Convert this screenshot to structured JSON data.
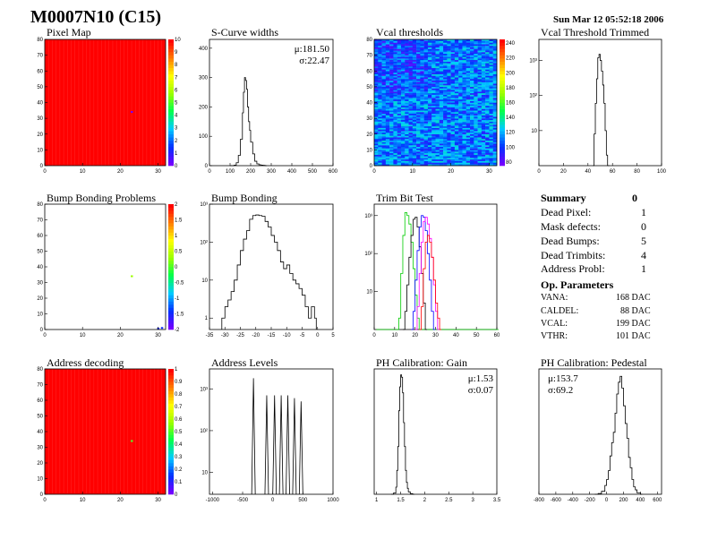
{
  "header": {
    "title": "M0007N10 (C15)",
    "date": "Sun Mar 12 05:52:18 2006"
  },
  "summary": {
    "title": "Summary",
    "value": "0",
    "rows": [
      {
        "label": "Dead Pixel:",
        "value": "1"
      },
      {
        "label": "Mask defects:",
        "value": "0"
      },
      {
        "label": "Dead Bumps:",
        "value": "5"
      },
      {
        "label": "Dead Trimbits:",
        "value": "4"
      },
      {
        "label": "Address Probl:",
        "value": "1"
      }
    ],
    "op_title": "Op. Parameters",
    "op_rows": [
      {
        "label": "VANA:",
        "value": "168 DAC"
      },
      {
        "label": "CALDEL:",
        "value": "88 DAC"
      },
      {
        "label": "VCAL:",
        "value": "199 DAC"
      },
      {
        "label": "VTHR:",
        "value": "101 DAC"
      }
    ]
  },
  "chart_data": [
    {
      "id": "pixelmap",
      "type": "heatmap",
      "title": "Pixel Map",
      "xticks": [
        "0",
        "10",
        "20",
        "30"
      ],
      "yticks": [
        "0",
        "10",
        "20",
        "30",
        "40",
        "50",
        "60",
        "70",
        "80"
      ],
      "zticks": [
        "0",
        "1",
        "2",
        "3",
        "4",
        "5",
        "6",
        "7",
        "8",
        "9",
        "10"
      ],
      "xlim": [
        0,
        32
      ],
      "ylim": [
        0,
        80
      ],
      "zlim": [
        0,
        10
      ],
      "fill_value": 10,
      "outlier_points": [
        {
          "x": 23,
          "y": 34,
          "z": 0
        }
      ]
    },
    {
      "id": "scurve",
      "type": "histogram",
      "title": "S-Curve widths",
      "xticks": [
        "0",
        "100",
        "200",
        "300",
        "400",
        "500",
        "600"
      ],
      "yticks": [
        "0",
        "100",
        "200",
        "300",
        "400"
      ],
      "xlim": [
        0,
        600
      ],
      "ylim": [
        0,
        430
      ],
      "log": false,
      "stats": [
        {
          "label": "μ:",
          "value": "181.50"
        },
        {
          "label": "σ:",
          "value": "22.47"
        }
      ],
      "x": [
        100,
        120,
        130,
        140,
        150,
        160,
        165,
        170,
        175,
        180,
        185,
        190,
        195,
        200,
        210,
        220,
        230,
        240,
        250,
        260,
        270
      ],
      "y": [
        0,
        2,
        10,
        35,
        90,
        180,
        250,
        300,
        290,
        260,
        200,
        150,
        120,
        80,
        40,
        15,
        6,
        3,
        2,
        1,
        0
      ]
    },
    {
      "id": "vcal",
      "type": "heatmap",
      "title": "Vcal thresholds",
      "xticks": [
        "0",
        "10",
        "20",
        "30"
      ],
      "yticks": [
        "0",
        "10",
        "20",
        "30",
        "40",
        "50",
        "60",
        "70",
        "80"
      ],
      "zticks": [
        "80",
        "100",
        "120",
        "140",
        "160",
        "180",
        "200",
        "220",
        "240"
      ],
      "xlim": [
        0,
        32
      ],
      "ylim": [
        0,
        80
      ],
      "zlim": [
        75,
        245
      ],
      "mean_value": 110
    },
    {
      "id": "vcaltrim",
      "type": "histogram",
      "title": "Vcal Threshold Trimmed",
      "xticks": [
        "0",
        "20",
        "40",
        "60",
        "80",
        "100"
      ],
      "yticks": [
        "10",
        "10²",
        "10³"
      ],
      "xlim": [
        0,
        100
      ],
      "ylim": [
        1,
        4000
      ],
      "log": true,
      "x": [
        44,
        45,
        46,
        47,
        48,
        49,
        50,
        51,
        52,
        53,
        54,
        55,
        56
      ],
      "y": [
        1,
        8,
        60,
        300,
        1200,
        1500,
        1000,
        500,
        200,
        60,
        10,
        2,
        1
      ]
    },
    {
      "id": "bump",
      "type": "heatmap",
      "title": "Bump Bonding Problems",
      "xticks": [
        "0",
        "10",
        "20",
        "30"
      ],
      "yticks": [
        "0",
        "10",
        "20",
        "30",
        "40",
        "50",
        "60",
        "70",
        "80"
      ],
      "zticks": [
        "-2",
        "-1.5",
        "-1",
        "-0.5",
        "0",
        "0.5",
        "1",
        "1.5",
        "2"
      ],
      "xlim": [
        0,
        32
      ],
      "ylim": [
        0,
        80
      ],
      "zlim": [
        -2,
        2
      ],
      "outlier_points": [
        {
          "x": 23,
          "y": 34,
          "z": 0.3
        },
        {
          "x": 30,
          "y": 0.6,
          "z": -1.5
        },
        {
          "x": 31,
          "y": 1,
          "z": -1.5
        }
      ]
    },
    {
      "id": "bumpbond",
      "type": "histogram",
      "title": "Bump Bonding",
      "xticks": [
        "-35",
        "-30",
        "-25",
        "-20",
        "-15",
        "-10",
        "-5",
        "0",
        "5"
      ],
      "yticks": [
        "1",
        "10",
        "10²",
        "10³"
      ],
      "xlim": [
        -35,
        5
      ],
      "ylim": [
        0.5,
        1000
      ],
      "log": true,
      "x": [
        -31,
        -30,
        -29,
        -28,
        -27,
        -26,
        -25,
        -24,
        -23,
        -22,
        -21,
        -20,
        -19,
        -18,
        -17,
        -16,
        -15,
        -14,
        -13,
        -12,
        -11,
        -10,
        -9,
        -8,
        -7,
        -6,
        -5,
        -4,
        -3,
        -2,
        -1
      ],
      "y": [
        1,
        2,
        3,
        5,
        10,
        25,
        60,
        120,
        200,
        400,
        500,
        520,
        500,
        480,
        350,
        250,
        150,
        100,
        60,
        30,
        20,
        25,
        15,
        10,
        8,
        6,
        4,
        2,
        1,
        2,
        1
      ]
    },
    {
      "id": "trimbit",
      "type": "line",
      "title": "Trim Bit Test",
      "xticks": [
        "0",
        "10",
        "20",
        "30",
        "40",
        "50",
        "60"
      ],
      "yticks": [
        "10",
        "10²",
        "10³"
      ],
      "xlim": [
        0,
        60
      ],
      "ylim": [
        1,
        2000
      ],
      "log": true,
      "series": [
        {
          "color": "#00cc00",
          "x": [
            1,
            5,
            10,
            12,
            13,
            14,
            15,
            16,
            17,
            18,
            19,
            20,
            21,
            22,
            23,
            60
          ],
          "y": [
            1,
            1,
            1,
            2,
            30,
            300,
            1200,
            1000,
            600,
            200,
            40,
            8,
            2,
            1,
            1,
            1
          ]
        },
        {
          "color": "#000000",
          "x": [
            14,
            15,
            16,
            17,
            18,
            19,
            20,
            21,
            22,
            23,
            24,
            25
          ],
          "y": [
            1,
            3,
            15,
            80,
            300,
            800,
            900,
            500,
            150,
            30,
            5,
            1
          ]
        },
        {
          "color": "#0000ff",
          "x": [
            18,
            19,
            20,
            21,
            22,
            23,
            24,
            25,
            26,
            27,
            28,
            29
          ],
          "y": [
            1,
            3,
            20,
            120,
            500,
            1000,
            900,
            400,
            100,
            20,
            3,
            1
          ]
        },
        {
          "color": "#ff00ff",
          "x": [
            20,
            21,
            22,
            23,
            24,
            25,
            26,
            27,
            28,
            29,
            30,
            31
          ],
          "y": [
            1,
            4,
            30,
            200,
            700,
            900,
            600,
            250,
            80,
            15,
            3,
            1
          ]
        },
        {
          "color": "#ff0000",
          "x": [
            22,
            23,
            24,
            25,
            26,
            27,
            28,
            29,
            30,
            31,
            32
          ],
          "y": [
            1,
            4,
            40,
            200,
            300,
            200,
            80,
            20,
            5,
            2,
            1
          ]
        }
      ]
    },
    {
      "id": "addrdec",
      "type": "heatmap",
      "title": "Address decoding",
      "xticks": [
        "0",
        "10",
        "20",
        "30"
      ],
      "yticks": [
        "0",
        "10",
        "20",
        "30",
        "40",
        "50",
        "60",
        "70",
        "80"
      ],
      "zticks": [
        "0",
        "0.1",
        "0.2",
        "0.3",
        "0.4",
        "0.5",
        "0.6",
        "0.7",
        "0.8",
        "0.9",
        "1"
      ],
      "xlim": [
        0,
        32
      ],
      "ylim": [
        0,
        80
      ],
      "zlim": [
        0,
        1
      ],
      "fill_value": 1,
      "outlier_points": [
        {
          "x": 23,
          "y": 34,
          "z": 0.5
        }
      ]
    },
    {
      "id": "addrlev",
      "type": "histogram",
      "title": "Address Levels",
      "xticks": [
        "-1000",
        "-500",
        "0",
        "500",
        "1000"
      ],
      "yticks": [
        "10",
        "10²",
        "10³"
      ],
      "xlim": [
        -1050,
        1000
      ],
      "ylim": [
        3,
        3000
      ],
      "log": true,
      "peaks": [
        {
          "x": -320,
          "y": 1800
        },
        {
          "x": -100,
          "y": 700
        },
        {
          "x": 30,
          "y": 700
        },
        {
          "x": 140,
          "y": 700
        },
        {
          "x": 250,
          "y": 700
        },
        {
          "x": 360,
          "y": 600
        },
        {
          "x": 470,
          "y": 500
        }
      ]
    },
    {
      "id": "phgain",
      "type": "histogram",
      "title": "PH Calibration: Gain",
      "xticks": [
        "1",
        "1.5",
        "2",
        "2.5",
        "3",
        "3.5"
      ],
      "yticks": [],
      "xlim": [
        0.95,
        3.5
      ],
      "ylim": [
        0,
        1050
      ],
      "log": false,
      "stats": [
        {
          "label": "μ:",
          "value": "1.53"
        },
        {
          "label": "σ:",
          "value": "0.07"
        }
      ],
      "x": [
        1.3,
        1.35,
        1.4,
        1.42,
        1.44,
        1.46,
        1.48,
        1.5,
        1.52,
        1.54,
        1.56,
        1.58,
        1.6,
        1.62,
        1.64,
        1.66,
        1.7,
        1.75
      ],
      "y": [
        0,
        10,
        60,
        200,
        400,
        700,
        900,
        1000,
        980,
        850,
        600,
        400,
        200,
        100,
        50,
        20,
        5,
        0
      ]
    },
    {
      "id": "phped",
      "type": "histogram",
      "title": "PH Calibration: Pedestal",
      "xticks": [
        "-800",
        "-600",
        "-400",
        "-200",
        "0",
        "200",
        "400",
        "600"
      ],
      "yticks": [],
      "xlim": [
        -800,
        650
      ],
      "ylim": [
        0,
        850
      ],
      "log": false,
      "stats": [
        {
          "label": "μ:",
          "value": "153.7"
        },
        {
          "label": "σ:",
          "value": "69.2"
        }
      ],
      "x": [
        -140,
        -100,
        -60,
        -20,
        0,
        20,
        40,
        60,
        80,
        100,
        120,
        140,
        160,
        180,
        200,
        220,
        240,
        260,
        280,
        300,
        320,
        340,
        360,
        400
      ],
      "y": [
        0,
        5,
        20,
        60,
        100,
        160,
        260,
        350,
        420,
        550,
        680,
        760,
        800,
        720,
        600,
        480,
        380,
        250,
        180,
        100,
        50,
        30,
        10,
        0
      ]
    }
  ]
}
